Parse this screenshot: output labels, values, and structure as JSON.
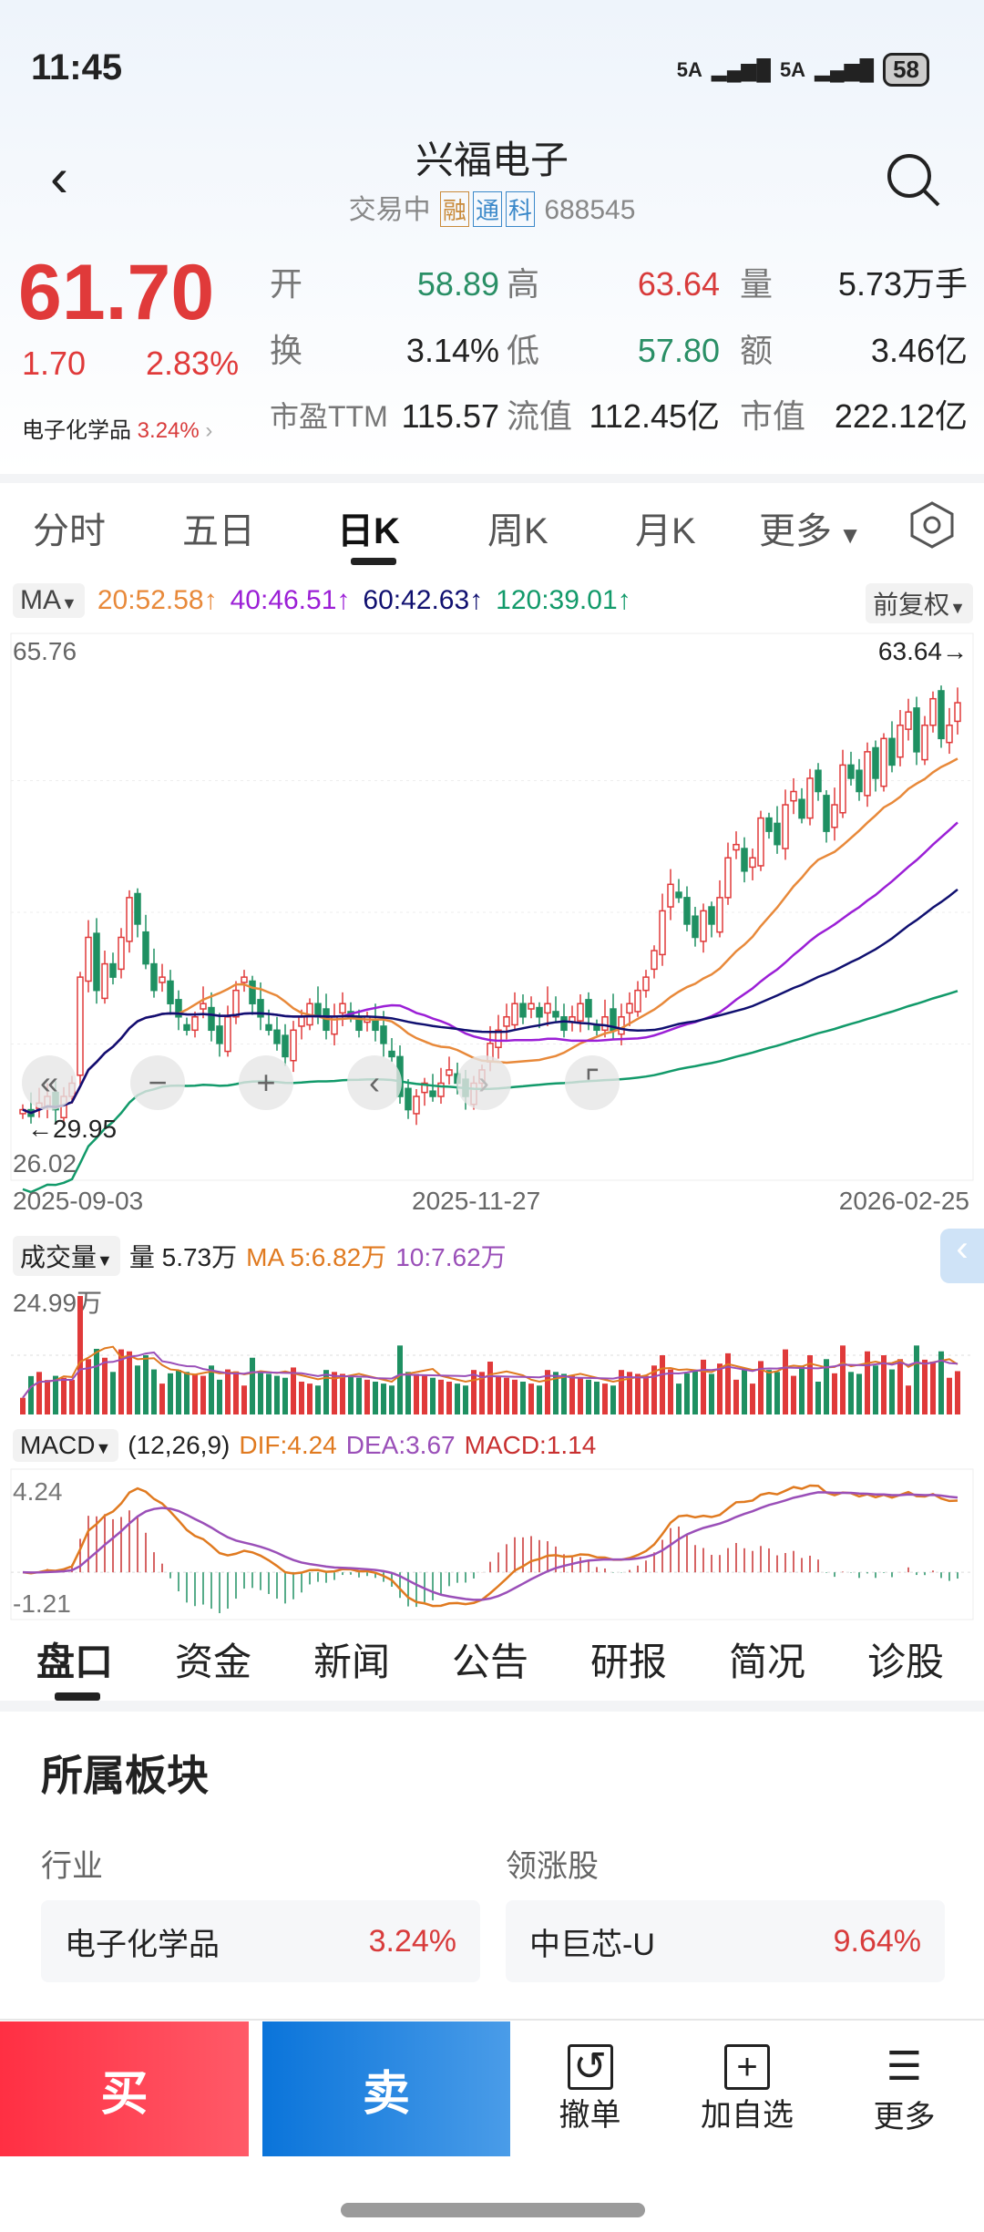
{
  "status": {
    "time": "11:45",
    "sig1": "5A",
    "sig2": "5A",
    "battery": "58"
  },
  "header": {
    "title": "兴福电子",
    "status": "交易中",
    "tags": [
      "融",
      "通",
      "科"
    ],
    "code": "688545"
  },
  "quote": {
    "price": "61.70",
    "change": "1.70",
    "pct": "2.83%",
    "sector": "电子化学品",
    "sector_pct": "3.24%",
    "rows": [
      [
        {
          "l": "开",
          "v": "58.89",
          "c": "grn"
        },
        {
          "l": "高",
          "v": "63.64",
          "c": "red"
        },
        {
          "l": "量",
          "v": "5.73万手",
          "c": ""
        }
      ],
      [
        {
          "l": "换",
          "v": "3.14%",
          "c": ""
        },
        {
          "l": "低",
          "v": "57.80",
          "c": "grn"
        },
        {
          "l": "额",
          "v": "3.46亿",
          "c": ""
        }
      ],
      [
        {
          "l": "市盈TTM",
          "v": "115.57",
          "c": ""
        },
        {
          "l": "流值",
          "v": "112.45亿",
          "c": ""
        },
        {
          "l": "市值",
          "v": "222.12亿",
          "c": ""
        }
      ]
    ]
  },
  "tabs": [
    "分时",
    "五日",
    "日K",
    "周K",
    "月K",
    "更多"
  ],
  "ma": {
    "label": "MA",
    "items": [
      {
        "t": "20:52.58↑",
        "color": "#e8893a"
      },
      {
        "t": "40:46.51↑",
        "color": "#9b1fd6"
      },
      {
        "t": "60:42.63↑",
        "color": "#101070"
      },
      {
        "t": "120:39.01↑",
        "color": "#129a6a"
      }
    ],
    "adjust": "前复权"
  },
  "chart_data": {
    "type": "candlestick",
    "ylim": [
      26.02,
      65.76
    ],
    "ymax_label": "65.76",
    "ymin_label": "26.02",
    "high_label": "63.64→",
    "low_label": "←29.95",
    "x_labels": [
      "2025-09-03",
      "2025-11-27",
      "2026-02-25"
    ],
    "close": [
      31,
      30.5,
      31.5,
      32,
      31,
      32,
      33,
      41,
      44,
      40,
      42,
      41,
      44,
      47,
      45,
      42,
      40,
      41,
      39,
      38,
      37,
      38,
      39,
      37,
      36,
      38,
      40,
      41,
      39,
      38,
      37,
      36,
      35,
      37,
      38,
      39,
      38,
      37,
      38,
      39,
      38,
      37,
      38,
      37,
      36,
      35,
      32,
      31,
      32,
      33,
      32,
      33,
      34,
      33,
      32,
      33,
      34,
      36,
      37,
      38,
      39,
      38,
      39,
      38,
      39,
      38,
      37,
      38,
      39,
      38,
      37,
      38,
      37,
      38,
      39,
      40,
      41,
      43,
      46,
      48,
      47,
      45,
      44,
      46,
      45,
      47,
      50,
      51,
      49,
      50,
      53,
      52,
      51,
      54,
      55,
      53,
      56,
      55,
      52,
      54,
      57,
      56,
      55,
      58,
      56,
      59,
      57,
      60,
      61,
      58,
      60,
      62,
      59,
      60,
      61.7
    ],
    "colors": {
      "up": "#e03a3a",
      "down": "#1f9062"
    }
  },
  "volume": {
    "label": "成交量",
    "vol": "量 5.73万",
    "ma5": "MA 5:6.82万",
    "ma10": "10:7.62万",
    "max": "24.99万"
  },
  "macd": {
    "label": "MACD",
    "params": "(12,26,9)",
    "dif": "DIF:4.24",
    "dea": "DEA:3.67",
    "macd": "MACD:1.14",
    "max": "4.24",
    "min": "-1.21"
  },
  "subtabs": [
    "盘口",
    "资金",
    "新闻",
    "公告",
    "研报",
    "简况",
    "诊股"
  ],
  "sector": {
    "title": "所属板块",
    "industry_label": "行业",
    "leader_label": "领涨股",
    "industry": "电子化学品",
    "industry_pct": "3.24%",
    "leader": "中巨芯-U",
    "leader_pct": "9.64%"
  },
  "bottom": {
    "buy": "买",
    "sell": "卖",
    "cancel": "撤单",
    "watch": "加自选",
    "more": "更多"
  }
}
